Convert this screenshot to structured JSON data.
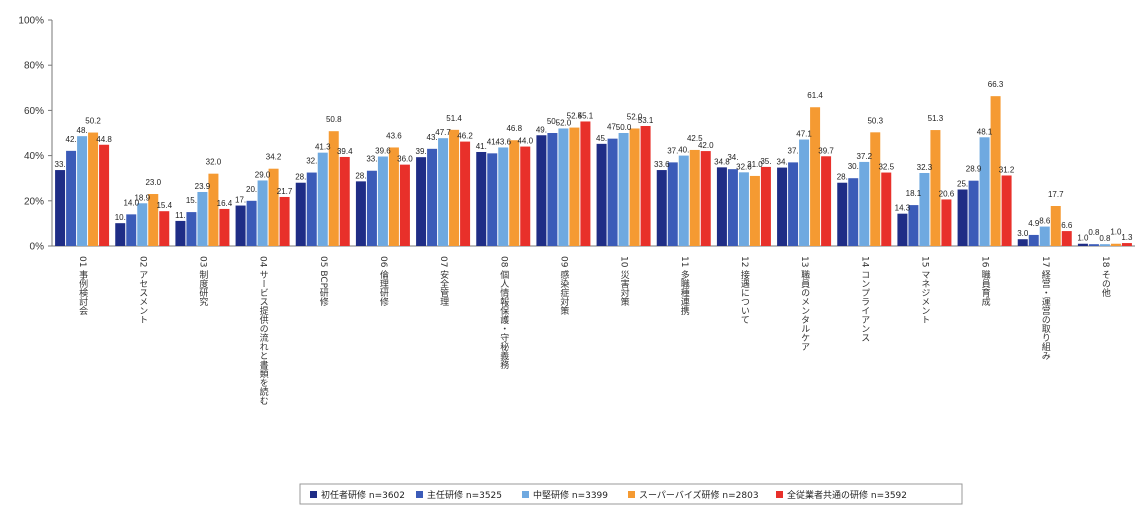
{
  "chart_data": {
    "type": "bar",
    "title": "",
    "xlabel": "",
    "ylabel": "",
    "ylim": [
      0,
      100
    ],
    "y_ticks": [
      "0%",
      "20%",
      "40%",
      "60%",
      "80%",
      "100%"
    ],
    "grid": false,
    "legend_position": "bottom",
    "categories": [
      "01 事例検討会",
      "02 アセスメント",
      "03 制度研究",
      "04 サービス提供の流れと書類を読む",
      "05 BCP研修",
      "06 倫理研修",
      "07 安全管理",
      "08 個人情報保護・守秘義務",
      "09 感染症対策",
      "10 災害対策",
      "11 多職種連携",
      "12 接遇について",
      "13 職員のメンタルケア",
      "14 コンプライアンス",
      "15 マネジメント",
      "16 職員育成",
      "17 経営・運営の取り組み",
      "18 その他"
    ],
    "series": [
      {
        "name": "初任者研修 n=3602",
        "color": "#1f2d86",
        "values": [
          33.6,
          10.1,
          11.1,
          17.9,
          28.0,
          28.6,
          39.3,
          41.6,
          49.0,
          45.2,
          33.6,
          34.8,
          34.7,
          28.0,
          14.3,
          25.0,
          3.0,
          1.0
        ]
      },
      {
        "name": "主任研修 n=3525",
        "color": "#3b5bb8",
        "values": [
          42.1,
          14.0,
          15.0,
          20.0,
          32.5,
          33.3,
          43.0,
          41.0,
          50.0,
          47.5,
          37.0,
          34.0,
          37.0,
          30.0,
          18.1,
          28.9,
          4.9,
          0.8
        ]
      },
      {
        "name": "中堅研修 n=3399",
        "color": "#6fa9e0",
        "values": [
          48.6,
          18.9,
          23.9,
          29.0,
          41.3,
          39.6,
          47.7,
          43.6,
          52.0,
          50.0,
          40.0,
          32.6,
          47.1,
          37.2,
          32.3,
          48.1,
          8.6,
          0.8
        ]
      },
      {
        "name": "スーパーバイズ研修 n=2803",
        "color": "#f59a32",
        "values": [
          50.2,
          23.0,
          32.0,
          34.2,
          50.8,
          43.6,
          51.4,
          46.8,
          52.4,
          52.0,
          42.5,
          31.0,
          61.4,
          50.3,
          51.3,
          66.3,
          17.7,
          1.0
        ]
      },
      {
        "name": "全従業者共通の研修 n=3592",
        "color": "#e8302a",
        "values": [
          44.8,
          15.4,
          16.4,
          21.7,
          39.4,
          36.0,
          46.2,
          44.0,
          55.1,
          53.1,
          42.0,
          35.0,
          39.7,
          32.5,
          20.6,
          31.2,
          6.6,
          1.3
        ]
      }
    ],
    "data_labels": [
      [
        "33.",
        "42.",
        "48.",
        "50.2",
        "44.8"
      ],
      [
        "10.",
        "14.0",
        "18.9",
        "23.0",
        "15.4"
      ],
      [
        "11.",
        "15.",
        "23.9",
        "32.0",
        "16.4"
      ],
      [
        "17.",
        "20.",
        "29.0",
        "34.2",
        "21.7"
      ],
      [
        "28.",
        "32.",
        "41.3",
        "50.8",
        "39.4"
      ],
      [
        "28.",
        "33.",
        "39.6",
        "43.6",
        "36.0"
      ],
      [
        "39.",
        "43.",
        "47.7",
        "51.4",
        "46.2"
      ],
      [
        "41.",
        "41.",
        "43.6",
        "46.8",
        "44.0"
      ],
      [
        "49.",
        "50.",
        "52.0",
        "52.4",
        "55.1"
      ],
      [
        "45.",
        "47.",
        "50.0",
        "52.0",
        "53.1"
      ],
      [
        "33.6",
        "37.",
        "40.",
        "42.5",
        "42.0"
      ],
      [
        "34.8",
        "34.",
        "32.6",
        "31.0",
        "35."
      ],
      [
        "34.",
        "37.",
        "47.1",
        "61.4",
        "39.7"
      ],
      [
        "28.",
        "30.",
        "37.2",
        "50.3",
        "32.5"
      ],
      [
        "14.3",
        "18.1",
        "32.3",
        "51.3",
        "20.6"
      ],
      [
        "25.",
        "28.9",
        "48.1",
        "66.3",
        "31.2"
      ],
      [
        "3.0",
        "4.9",
        "8.6",
        "17.7",
        "6.6"
      ],
      [
        "1.0",
        "0.8",
        "0.8",
        "1.0",
        "1.3"
      ]
    ]
  }
}
